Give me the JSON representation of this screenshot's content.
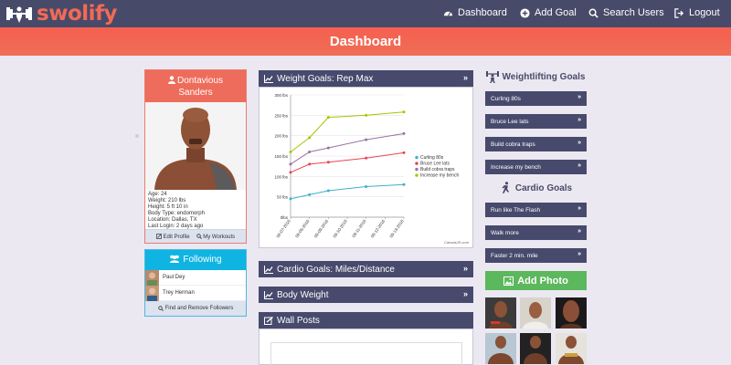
{
  "brand": {
    "name": "swolify"
  },
  "nav": {
    "links": [
      {
        "label": "Dashboard",
        "icon": "dashboard-icon"
      },
      {
        "label": "Add Goal",
        "icon": "plus-circle-icon"
      },
      {
        "label": "Search Users",
        "icon": "search-icon"
      },
      {
        "label": "Logout",
        "icon": "logout-icon"
      }
    ]
  },
  "banner": {
    "title": "Dashboard"
  },
  "profile": {
    "first_name": "Dontavious",
    "last_name": "Sanders",
    "stats": [
      "Age: 24",
      "Weight: 210 lbs",
      "Height: 5 ft 10 in",
      "Body Type: endomorph",
      "Location: Dallas, TX",
      "Last Login: 2 days ago"
    ],
    "edit_label": "Edit Profile",
    "workouts_label": "My Workouts"
  },
  "following": {
    "title": "Following",
    "people": [
      "Paul Dey",
      "Trey Herman"
    ],
    "footer_label": "Find and Remove Followers"
  },
  "panels": {
    "weight_goals": "Weight Goals: Rep Max",
    "cardio_goals": "Cardio Goals: Miles/Distance",
    "body_weight": "Body Weight",
    "wall_posts": "Wall Posts"
  },
  "chart_data": {
    "type": "line",
    "x": [
      "08-07-2016",
      "09-08-2016",
      "09-09-2016",
      "09-10-2016",
      "09-11-2016",
      "09-12-2016",
      "09-13-2016"
    ],
    "ylim": [
      0,
      300
    ],
    "yticks": [
      0,
      50,
      100,
      150,
      200,
      250,
      300
    ],
    "ytick_labels": [
      "0lbs",
      "50 lbs",
      "100 lbs",
      "150 lbs",
      "200 lbs",
      "250 lbs",
      "300 lbs"
    ],
    "series": [
      {
        "name": "Curling 80s",
        "color": "#3fafc8",
        "points": [
          [
            0,
            45
          ],
          [
            1,
            55
          ],
          [
            2,
            65
          ],
          [
            4,
            75
          ],
          [
            6,
            80
          ]
        ]
      },
      {
        "name": "Bruce Lee lats",
        "color": "#e64552",
        "points": [
          [
            0,
            110
          ],
          [
            1,
            130
          ],
          [
            2,
            135
          ],
          [
            4,
            145
          ],
          [
            6,
            158
          ]
        ]
      },
      {
        "name": "Build cobra traps",
        "color": "#9b6fa6",
        "points": [
          [
            0,
            130
          ],
          [
            1,
            160
          ],
          [
            2,
            170
          ],
          [
            4,
            190
          ],
          [
            6,
            205
          ]
        ]
      },
      {
        "name": "Increase my bench",
        "color": "#a6c600",
        "points": [
          [
            0,
            160
          ],
          [
            1,
            195
          ],
          [
            2,
            245
          ],
          [
            4,
            250
          ],
          [
            6,
            258
          ]
        ]
      }
    ],
    "credit": "CanvasJS.com",
    "legend": "right"
  },
  "weightlifting": {
    "title": "Weightlifting Goals",
    "goals": [
      "Curling 80s",
      "Bruce Lee lats",
      "Build cobra traps",
      "Increase my bench"
    ]
  },
  "cardio": {
    "title": "Cardio Goals",
    "goals": [
      "Run like The Flash",
      "Walk more",
      "Faster 2 min. mile"
    ]
  },
  "photos": {
    "add_label": "Add Photo"
  },
  "chevron": "»"
}
